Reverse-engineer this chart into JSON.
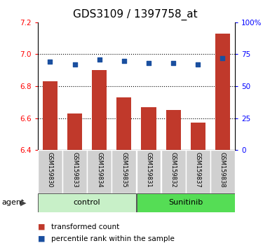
{
  "title": "GDS3109 / 1397758_at",
  "samples": [
    "GSM159830",
    "GSM159833",
    "GSM159834",
    "GSM159835",
    "GSM159831",
    "GSM159832",
    "GSM159837",
    "GSM159838"
  ],
  "bar_values": [
    6.83,
    6.63,
    6.9,
    6.73,
    6.67,
    6.65,
    6.57,
    7.13
  ],
  "percentile_values": [
    69,
    67,
    71,
    70,
    68,
    68,
    67,
    72
  ],
  "ylim_left": [
    6.4,
    7.2
  ],
  "ylim_right": [
    0,
    100
  ],
  "yticks_left": [
    6.4,
    6.6,
    6.8,
    7.0,
    7.2
  ],
  "yticks_right": [
    0,
    25,
    50,
    75,
    100
  ],
  "bar_color": "#C0392B",
  "scatter_color": "#1a4f9f",
  "control_color": "#c8f0c8",
  "sunitinib_color": "#55dd55",
  "sample_box_color": "#d0d0d0",
  "agent_label": "agent",
  "legend_bar_label": "transformed count",
  "legend_scatter_label": "percentile rank within the sample",
  "title_fontsize": 11,
  "tick_fontsize": 7.5,
  "sample_fontsize": 6,
  "group_fontsize": 8,
  "legend_fontsize": 7.5,
  "agent_fontsize": 8,
  "bar_width": 0.6,
  "grid_lines": [
    6.6,
    6.8,
    7.0
  ]
}
